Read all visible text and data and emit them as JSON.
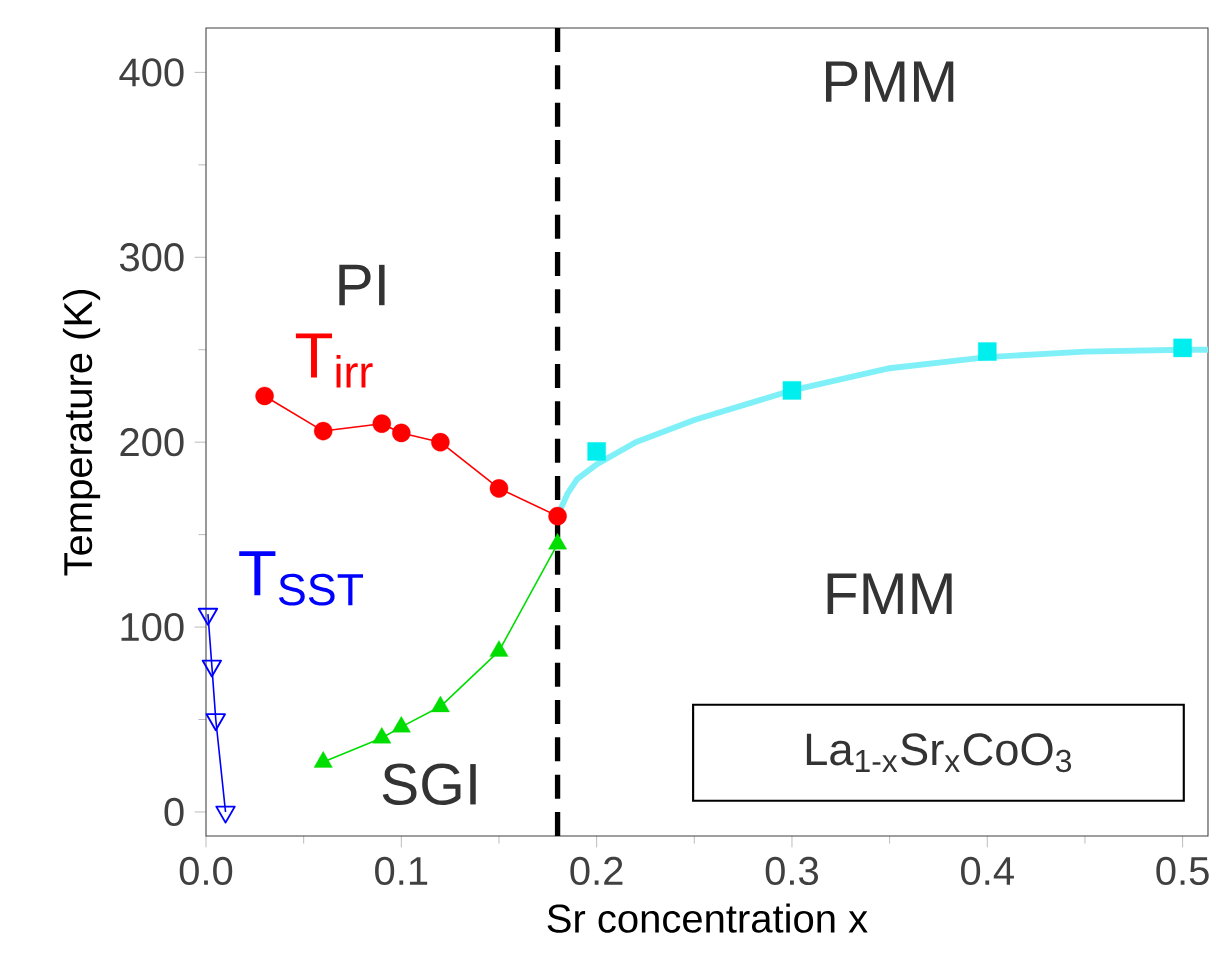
{
  "chart_data": {
    "type": "line",
    "xlabel": "Sr concentration x",
    "ylabel": "Temperature (K)",
    "xlim": [
      0,
      0.513
    ],
    "ylim": [
      -13,
      424
    ],
    "xticks": [
      {
        "value": 0,
        "label": "0.0"
      },
      0.1,
      0.2,
      0.3,
      0.4,
      0.5
    ],
    "yticks": [
      0,
      100,
      200,
      300,
      400
    ],
    "grid": false,
    "series": [
      {
        "name": "T$_{irr}$",
        "type": "line",
        "marker": "circle",
        "color": "#ff0000",
        "x": [
          0.03,
          0.06,
          0.09,
          0.1,
          0.12,
          0.15,
          0.18
        ],
        "values": [
          225,
          206,
          210,
          205,
          200,
          175,
          160
        ]
      },
      {
        "type": "line",
        "marker": "triangle",
        "color": "#00dd00",
        "x": [
          0.06,
          0.09,
          0.1,
          0.12,
          0.15,
          0.18
        ],
        "values": [
          27,
          40,
          46,
          57,
          87,
          145
        ]
      },
      {
        "name": "T$_{SST}$",
        "type": "line",
        "marker": "triangle",
        "color": "#0000ff",
        "x": [
          0.001,
          0.003,
          0.005,
          0.01
        ],
        "values": [
          107,
          79,
          50,
          0
        ]
      },
      {
        "type": "scatter",
        "marker": "square",
        "color": "#00eeee",
        "x": [
          0.2,
          0.3,
          0.4,
          0.5
        ],
        "values": [
          195,
          228,
          249,
          251
        ]
      },
      {
        "marker": "none",
        "color": "#80f0f8",
        "x": [
          0.18,
          0.185,
          0.19,
          0.2,
          0.22,
          0.25,
          0.3,
          0.35,
          0.4,
          0.45,
          0.5,
          0.513
        ],
        "values": [
          160,
          172,
          180,
          188,
          200,
          212,
          228,
          240,
          246,
          249,
          250,
          250
        ]
      }
    ],
    "ref_lines": [
      {
        "axis": "x",
        "value": 0.18,
        "line_style": "dashed",
        "color": "#000000"
      }
    ],
    "annotations": [
      "PMM",
      "PI",
      "FMM",
      "SGI",
      "La$_{1-x}$Sr$_{x}$CoO$_{3}$"
    ]
  }
}
